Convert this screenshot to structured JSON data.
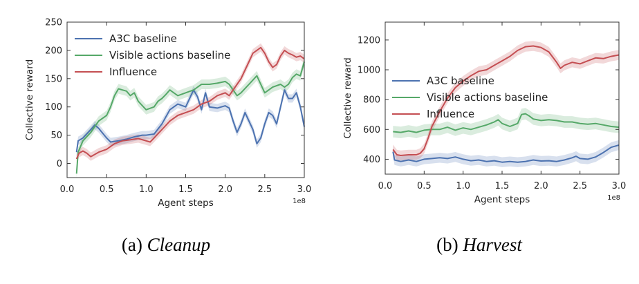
{
  "colors": {
    "a3c": "#4c72b0",
    "visible": "#55a868",
    "influence": "#c44e52"
  },
  "chart_data": [
    {
      "type": "line",
      "caption_label": "(a)",
      "caption_title": "Cleanup",
      "xlabel": "Agent steps",
      "ylabel": "Collective reward",
      "x_multiplier": "1e8",
      "xlim": [
        0.0,
        3.0
      ],
      "ylim": [
        -25,
        250
      ],
      "xticks": [
        "0.0",
        "0.5",
        "1.0",
        "1.5",
        "2.0",
        "2.5",
        "3.0"
      ],
      "yticks": [
        "0",
        "50",
        "100",
        "150",
        "200",
        "250"
      ],
      "legend_position": "top-left",
      "grid": false,
      "series": [
        {
          "name": "A3C baseline",
          "color": "#4c72b0",
          "points": [
            [
              0.12,
              20
            ],
            [
              0.14,
              40
            ],
            [
              0.2,
              45
            ],
            [
              0.3,
              60
            ],
            [
              0.35,
              68
            ],
            [
              0.4,
              62
            ],
            [
              0.5,
              45
            ],
            [
              0.55,
              38
            ],
            [
              0.65,
              40
            ],
            [
              0.75,
              43
            ],
            [
              0.85,
              47
            ],
            [
              0.95,
              50
            ],
            [
              1.0,
              50
            ],
            [
              1.1,
              52
            ],
            [
              1.2,
              70
            ],
            [
              1.3,
              95
            ],
            [
              1.4,
              105
            ],
            [
              1.5,
              100
            ],
            [
              1.55,
              115
            ],
            [
              1.6,
              130
            ],
            [
              1.65,
              118
            ],
            [
              1.7,
              95
            ],
            [
              1.75,
              125
            ],
            [
              1.8,
              100
            ],
            [
              1.9,
              98
            ],
            [
              2.0,
              102
            ],
            [
              2.05,
              98
            ],
            [
              2.1,
              75
            ],
            [
              2.15,
              55
            ],
            [
              2.2,
              70
            ],
            [
              2.25,
              90
            ],
            [
              2.3,
              75
            ],
            [
              2.35,
              60
            ],
            [
              2.4,
              35
            ],
            [
              2.45,
              45
            ],
            [
              2.5,
              70
            ],
            [
              2.55,
              90
            ],
            [
              2.6,
              85
            ],
            [
              2.65,
              70
            ],
            [
              2.7,
              100
            ],
            [
              2.75,
              130
            ],
            [
              2.8,
              115
            ],
            [
              2.85,
              115
            ],
            [
              2.9,
              125
            ],
            [
              2.95,
              100
            ],
            [
              3.0,
              65
            ]
          ]
        },
        {
          "name": "Visible actions baseline",
          "color": "#55a868",
          "points": [
            [
              0.12,
              -18
            ],
            [
              0.14,
              20
            ],
            [
              0.2,
              40
            ],
            [
              0.3,
              55
            ],
            [
              0.4,
              75
            ],
            [
              0.5,
              85
            ],
            [
              0.55,
              100
            ],
            [
              0.6,
              120
            ],
            [
              0.65,
              132
            ],
            [
              0.7,
              130
            ],
            [
              0.75,
              128
            ],
            [
              0.8,
              120
            ],
            [
              0.85,
              125
            ],
            [
              0.9,
              110
            ],
            [
              1.0,
              95
            ],
            [
              1.1,
              100
            ],
            [
              1.15,
              110
            ],
            [
              1.2,
              115
            ],
            [
              1.25,
              122
            ],
            [
              1.3,
              130
            ],
            [
              1.35,
              125
            ],
            [
              1.4,
              120
            ],
            [
              1.5,
              125
            ],
            [
              1.6,
              130
            ],
            [
              1.7,
              140
            ],
            [
              1.8,
              140
            ],
            [
              1.9,
              142
            ],
            [
              2.0,
              145
            ],
            [
              2.05,
              140
            ],
            [
              2.1,
              130
            ],
            [
              2.15,
              120
            ],
            [
              2.2,
              125
            ],
            [
              2.3,
              140
            ],
            [
              2.4,
              155
            ],
            [
              2.45,
              140
            ],
            [
              2.5,
              125
            ],
            [
              2.55,
              130
            ],
            [
              2.6,
              135
            ],
            [
              2.7,
              140
            ],
            [
              2.75,
              135
            ],
            [
              2.8,
              140
            ],
            [
              2.85,
              152
            ],
            [
              2.9,
              158
            ],
            [
              2.95,
              155
            ],
            [
              3.0,
              180
            ]
          ]
        },
        {
          "name": "Influence",
          "color": "#c44e52",
          "points": [
            [
              0.12,
              8
            ],
            [
              0.15,
              18
            ],
            [
              0.2,
              22
            ],
            [
              0.25,
              18
            ],
            [
              0.3,
              12
            ],
            [
              0.35,
              16
            ],
            [
              0.4,
              20
            ],
            [
              0.5,
              25
            ],
            [
              0.6,
              35
            ],
            [
              0.7,
              40
            ],
            [
              0.8,
              42
            ],
            [
              0.9,
              44
            ],
            [
              1.0,
              40
            ],
            [
              1.05,
              38
            ],
            [
              1.1,
              45
            ],
            [
              1.2,
              60
            ],
            [
              1.3,
              75
            ],
            [
              1.4,
              85
            ],
            [
              1.5,
              90
            ],
            [
              1.6,
              95
            ],
            [
              1.7,
              105
            ],
            [
              1.8,
              110
            ],
            [
              1.9,
              120
            ],
            [
              2.0,
              125
            ],
            [
              2.05,
              120
            ],
            [
              2.1,
              130
            ],
            [
              2.2,
              150
            ],
            [
              2.3,
              180
            ],
            [
              2.35,
              195
            ],
            [
              2.4,
              200
            ],
            [
              2.45,
              205
            ],
            [
              2.5,
              195
            ],
            [
              2.55,
              180
            ],
            [
              2.6,
              170
            ],
            [
              2.65,
              175
            ],
            [
              2.7,
              190
            ],
            [
              2.75,
              200
            ],
            [
              2.8,
              195
            ],
            [
              2.85,
              192
            ],
            [
              2.9,
              188
            ],
            [
              2.95,
              190
            ],
            [
              3.0,
              185
            ]
          ]
        }
      ]
    },
    {
      "type": "line",
      "caption_label": "(b)",
      "caption_title": "Harvest",
      "xlabel": "Agent steps",
      "ylabel": "Collective reward",
      "x_multiplier": "1e8",
      "xlim": [
        0.0,
        3.0
      ],
      "ylim": [
        300,
        1320
      ],
      "xticks": [
        "0.0",
        "0.5",
        "1.0",
        "1.5",
        "2.0",
        "2.5",
        "3.0"
      ],
      "yticks": [
        "400",
        "600",
        "800",
        "1000",
        "1200"
      ],
      "legend_position": "center-left",
      "grid": false,
      "series": [
        {
          "name": "A3C baseline",
          "color": "#4c72b0",
          "points": [
            [
              0.1,
              450
            ],
            [
              0.12,
              395
            ],
            [
              0.2,
              385
            ],
            [
              0.3,
              395
            ],
            [
              0.4,
              385
            ],
            [
              0.5,
              400
            ],
            [
              0.6,
              405
            ],
            [
              0.7,
              410
            ],
            [
              0.8,
              405
            ],
            [
              0.9,
              415
            ],
            [
              1.0,
              400
            ],
            [
              1.1,
              390
            ],
            [
              1.2,
              395
            ],
            [
              1.3,
              385
            ],
            [
              1.4,
              390
            ],
            [
              1.5,
              380
            ],
            [
              1.6,
              385
            ],
            [
              1.7,
              380
            ],
            [
              1.8,
              385
            ],
            [
              1.9,
              395
            ],
            [
              2.0,
              388
            ],
            [
              2.1,
              390
            ],
            [
              2.2,
              385
            ],
            [
              2.3,
              395
            ],
            [
              2.4,
              410
            ],
            [
              2.45,
              420
            ],
            [
              2.5,
              405
            ],
            [
              2.6,
              400
            ],
            [
              2.7,
              415
            ],
            [
              2.8,
              445
            ],
            [
              2.9,
              480
            ],
            [
              3.0,
              495
            ]
          ]
        },
        {
          "name": "Visible actions baseline",
          "color": "#55a868",
          "points": [
            [
              0.1,
              585
            ],
            [
              0.2,
              580
            ],
            [
              0.3,
              590
            ],
            [
              0.4,
              580
            ],
            [
              0.5,
              595
            ],
            [
              0.6,
              600
            ],
            [
              0.7,
              600
            ],
            [
              0.8,
              615
            ],
            [
              0.9,
              595
            ],
            [
              1.0,
              610
            ],
            [
              1.1,
              600
            ],
            [
              1.2,
              615
            ],
            [
              1.3,
              630
            ],
            [
              1.4,
              650
            ],
            [
              1.45,
              665
            ],
            [
              1.5,
              640
            ],
            [
              1.6,
              620
            ],
            [
              1.7,
              640
            ],
            [
              1.75,
              700
            ],
            [
              1.8,
              705
            ],
            [
              1.85,
              690
            ],
            [
              1.9,
              670
            ],
            [
              2.0,
              660
            ],
            [
              2.1,
              665
            ],
            [
              2.2,
              660
            ],
            [
              2.3,
              650
            ],
            [
              2.4,
              650
            ],
            [
              2.5,
              640
            ],
            [
              2.6,
              635
            ],
            [
              2.7,
              640
            ],
            [
              2.8,
              630
            ],
            [
              2.9,
              620
            ],
            [
              3.0,
              615
            ]
          ]
        },
        {
          "name": "Influence",
          "color": "#c44e52",
          "points": [
            [
              0.1,
              465
            ],
            [
              0.15,
              430
            ],
            [
              0.2,
              425
            ],
            [
              0.3,
              430
            ],
            [
              0.4,
              430
            ],
            [
              0.45,
              440
            ],
            [
              0.5,
              470
            ],
            [
              0.55,
              540
            ],
            [
              0.6,
              620
            ],
            [
              0.7,
              720
            ],
            [
              0.8,
              810
            ],
            [
              0.9,
              880
            ],
            [
              1.0,
              925
            ],
            [
              1.1,
              960
            ],
            [
              1.2,
              990
            ],
            [
              1.3,
              1000
            ],
            [
              1.4,
              1030
            ],
            [
              1.5,
              1060
            ],
            [
              1.6,
              1090
            ],
            [
              1.7,
              1130
            ],
            [
              1.8,
              1155
            ],
            [
              1.9,
              1160
            ],
            [
              2.0,
              1150
            ],
            [
              2.1,
              1120
            ],
            [
              2.2,
              1050
            ],
            [
              2.25,
              1010
            ],
            [
              2.3,
              1030
            ],
            [
              2.4,
              1050
            ],
            [
              2.5,
              1040
            ],
            [
              2.6,
              1060
            ],
            [
              2.7,
              1080
            ],
            [
              2.8,
              1075
            ],
            [
              2.9,
              1090
            ],
            [
              3.0,
              1100
            ]
          ]
        }
      ]
    }
  ]
}
